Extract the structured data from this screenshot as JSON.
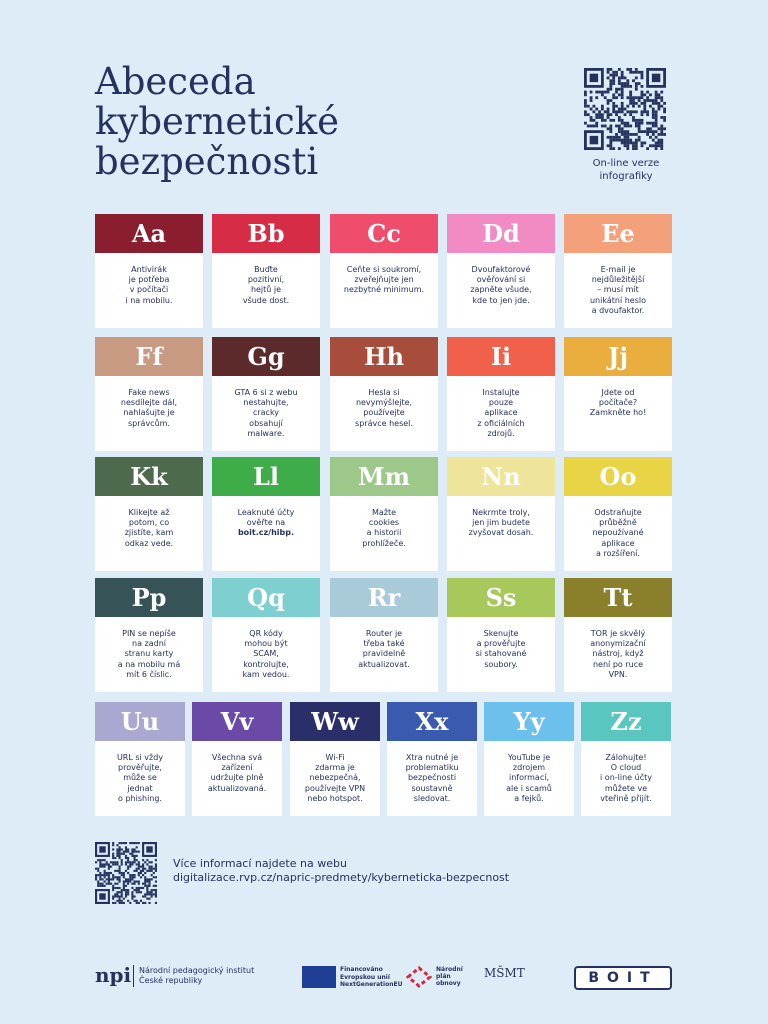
{
  "header": {
    "title_lines": [
      "Abeceda",
      "kybernetické",
      "bezpečnosti"
    ],
    "qr_caption_lines": [
      "On-line verze",
      "infografiky"
    ]
  },
  "cards": [
    {
      "letter": "Aa",
      "color": "#8b1e2e",
      "lines": [
        "Antivirák",
        "je potřeba",
        "v počítači",
        "i na mobilu."
      ]
    },
    {
      "letter": "Bb",
      "color": "#d72c46",
      "lines": [
        "Buďte",
        "pozitivní,",
        "hejtů je",
        "všude dost."
      ]
    },
    {
      "letter": "Cc",
      "color": "#ef4d6b",
      "lines": [
        "Ceňte si soukromí,",
        "zveřejňujte jen",
        "nezbytné minimum."
      ]
    },
    {
      "letter": "Dd",
      "color": "#f28ac4",
      "lines": [
        "Dvoufaktorové",
        "ověřování si",
        "zapněte všude,",
        "kde to jen jde."
      ]
    },
    {
      "letter": "Ee",
      "color": "#f4a07a",
      "lines": [
        "E-mail je",
        "nejdůležitější",
        "– musí mít",
        "unikátní heslo",
        "a dvoufaktor."
      ]
    },
    {
      "letter": "Ff",
      "color": "#c99a82",
      "lines": [
        "Fake news",
        "nesdílejte dál,",
        "nahlašujte je",
        "správcům."
      ]
    },
    {
      "letter": "Gg",
      "color": "#5c2a2a",
      "lines": [
        "GTA 6 si z webu",
        "nestahujte,",
        "cracky",
        "obsahují",
        "malware."
      ]
    },
    {
      "letter": "Hh",
      "color": "#a84c3c",
      "lines": [
        "Hesla si",
        "nevymýšlejte,",
        "používejte",
        "správce hesel."
      ]
    },
    {
      "letter": "Ii",
      "color": "#f0604a",
      "lines": [
        "Instalujte",
        "pouze",
        "aplikace",
        "z oficiálních",
        "zdrojů."
      ]
    },
    {
      "letter": "Jj",
      "color": "#e9ae3e",
      "lines": [
        "Jdete od",
        "počítače?",
        "Zamkněte ho!"
      ]
    },
    {
      "letter": "Kk",
      "color": "#4e6a4c",
      "lines": [
        "Klikejte až",
        "potom, co",
        "zjistíte, kam",
        "odkaz vede."
      ]
    },
    {
      "letter": "Ll",
      "color": "#3fac4a",
      "lines": [
        "Leaknuté účty",
        "ověřte na",
        "boit.cz/hibp."
      ]
    },
    {
      "letter": "Mm",
      "color": "#9cc98a",
      "lines": [
        "Mažte",
        "cookies",
        "a historii",
        "prohlížeče."
      ]
    },
    {
      "letter": "Nn",
      "color": "#efe59a",
      "lines": [
        "Nekrmte troly,",
        "jen jim budete",
        "zvyšovat dosah."
      ]
    },
    {
      "letter": "Oo",
      "color": "#e9d445",
      "lines": [
        "Odstraňujte",
        "průběžně",
        "nepoužívané",
        "aplikace",
        "a rozšíření."
      ]
    },
    {
      "letter": "Pp",
      "color": "#365458",
      "lines": [
        "PIN se nepíše",
        "na zadní",
        "stranu karty",
        "a na mobilu má",
        "mít 6 číslic."
      ]
    },
    {
      "letter": "Qq",
      "color": "#7ecfcf",
      "lines": [
        "QR kódy",
        "mohou být",
        "SCAM,",
        "kontrolujte,",
        "kam vedou."
      ]
    },
    {
      "letter": "Rr",
      "color": "#a9cad8",
      "lines": [
        "Router je",
        "třeba také",
        "pravidelně",
        "aktualizovat."
      ]
    },
    {
      "letter": "Ss",
      "color": "#a8c85b",
      "lines": [
        "Skenujte",
        "a prověřujte",
        "si stahované",
        "soubory."
      ]
    },
    {
      "letter": "Tt",
      "color": "#8a7f2a",
      "lines": [
        "TOR je skvělý",
        "anonymizační",
        "nástroj, když",
        "není po ruce",
        "VPN."
      ]
    },
    {
      "letter": "Uu",
      "color": "#a8a8d0",
      "lines": [
        "URL si vždy",
        "prověřujte,",
        "může se",
        "jednat",
        "o phishing."
      ]
    },
    {
      "letter": "Vv",
      "color": "#6a4aa6",
      "lines": [
        "Všechna svá",
        "zařízení",
        "udržujte plně",
        "aktualizovaná."
      ]
    },
    {
      "letter": "Ww",
      "color": "#2a2f6a",
      "lines": [
        "Wi-Fi",
        "zdarma je",
        "nebezpečná,",
        "používejte VPN",
        "nebo hotspot."
      ]
    },
    {
      "letter": "Xx",
      "color": "#3a5ab0",
      "lines": [
        "Xtra nutné je",
        "problematiku",
        "bezpečnosti",
        "soustavně",
        "sledovat."
      ]
    },
    {
      "letter": "Yy",
      "color": "#6cc0ec",
      "lines": [
        "YouTube je",
        "zdrojem",
        "informací,",
        "ale i scamů",
        "a fejků."
      ]
    },
    {
      "letter": "Zz",
      "color": "#59c7c0",
      "lines": [
        "Zálohujte!",
        "O cloud",
        "i on-line účty",
        "můžete ve",
        "vteřině přijít."
      ]
    }
  ],
  "more_info": {
    "lines": [
      "Více informací najdete na webu",
      "digitalizace.rvp.cz/napric-predmety/kyberneticka-bezpecnost"
    ]
  },
  "footer": {
    "npi_mark": "npi",
    "npi_lines": [
      "Národní pedagogický institut",
      "České republiky"
    ],
    "eu_lines": [
      "Financováno",
      "Evropskou unií",
      "NextGenerationEU"
    ],
    "npo_lines": [
      "Národní",
      "plán",
      "obnovy"
    ],
    "msmt": "MŠMT",
    "boit": "BOIT"
  }
}
